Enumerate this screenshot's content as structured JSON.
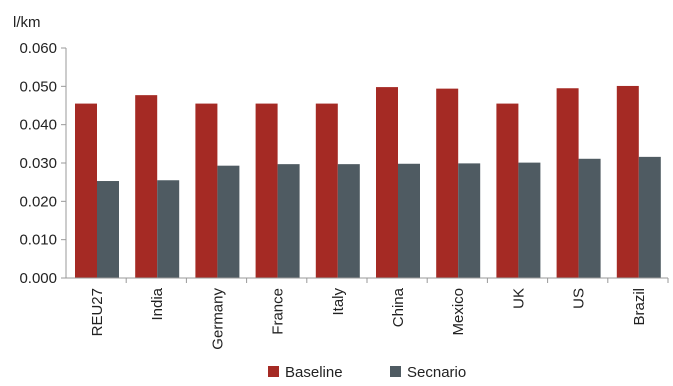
{
  "chart_data": {
    "type": "bar",
    "ylabel": "l/km",
    "ylim": [
      0,
      0.06
    ],
    "yticks": [
      "0.000",
      "0.010",
      "0.020",
      "0.030",
      "0.040",
      "0.050",
      "0.060"
    ],
    "grid": false,
    "legend_position": "bottom-center",
    "categories": [
      "REU27",
      "India",
      "Germany",
      "France",
      "Italy",
      "China",
      "Mexico",
      "UK",
      "US",
      "Brazil"
    ],
    "series": [
      {
        "name": "Baseline",
        "color": "#a52a24",
        "values": [
          0.0455,
          0.0477,
          0.0455,
          0.0455,
          0.0455,
          0.0498,
          0.0494,
          0.0455,
          0.0495,
          0.0501
        ]
      },
      {
        "name": "Secnario",
        "color": "#4f5b62",
        "values": [
          0.0253,
          0.0255,
          0.0293,
          0.0297,
          0.0297,
          0.0298,
          0.0299,
          0.0301,
          0.0311,
          0.0316
        ]
      }
    ]
  }
}
